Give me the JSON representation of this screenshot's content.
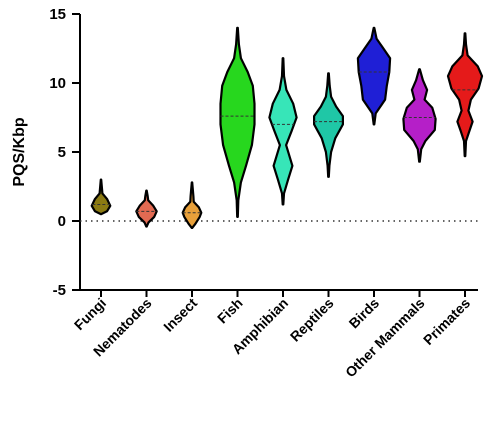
{
  "chart_data": {
    "type": "violin",
    "ylabel": "PQS/Kbp",
    "ylim": [
      -5,
      15
    ],
    "yticks": [
      -5,
      0,
      5,
      10,
      15
    ],
    "reference_line": 0,
    "categories": [
      "Fungi",
      "Nematodes",
      "Insect",
      "Fish",
      "Amphibian",
      "Reptiles",
      "Birds",
      "Other Mammals",
      "Primates"
    ],
    "series": [
      {
        "category": "Fungi",
        "color": "#8B7A12",
        "min": 0.5,
        "max": 3.0,
        "median": 1.2,
        "profile": [
          [
            0.5,
            0.01
          ],
          [
            0.7,
            0.35
          ],
          [
            1.1,
            0.55
          ],
          [
            1.6,
            0.35
          ],
          [
            2.0,
            0.08
          ],
          [
            2.5,
            0.05
          ],
          [
            3.0,
            0.01
          ]
        ]
      },
      {
        "category": "Nematodes",
        "color": "#E26A52",
        "min": -0.4,
        "max": 2.2,
        "median": 0.7,
        "profile": [
          [
            -0.4,
            0.01
          ],
          [
            -0.1,
            0.12
          ],
          [
            0.3,
            0.45
          ],
          [
            0.7,
            0.6
          ],
          [
            1.1,
            0.4
          ],
          [
            1.5,
            0.1
          ],
          [
            1.8,
            0.07
          ],
          [
            2.2,
            0.01
          ]
        ]
      },
      {
        "category": "Insect",
        "color": "#E8A03A",
        "min": -0.5,
        "max": 2.8,
        "median": 0.6,
        "profile": [
          [
            -0.5,
            0.01
          ],
          [
            -0.2,
            0.2
          ],
          [
            0.3,
            0.45
          ],
          [
            0.6,
            0.55
          ],
          [
            1.0,
            0.4
          ],
          [
            1.4,
            0.1
          ],
          [
            1.8,
            0.08
          ],
          [
            2.3,
            0.05
          ],
          [
            2.8,
            0.01
          ]
        ]
      },
      {
        "category": "Fish",
        "color": "#27D71E",
        "min": 0.3,
        "max": 14.0,
        "median": 7.6,
        "profile": [
          [
            0.3,
            0.02
          ],
          [
            1.5,
            0.05
          ],
          [
            2.8,
            0.2
          ],
          [
            4.0,
            0.5
          ],
          [
            5.5,
            0.85
          ],
          [
            7.0,
            1.0
          ],
          [
            8.5,
            1.0
          ],
          [
            9.8,
            0.9
          ],
          [
            10.8,
            0.6
          ],
          [
            11.8,
            0.2
          ],
          [
            12.8,
            0.08
          ],
          [
            14.0,
            0.02
          ]
        ]
      },
      {
        "category": "Amphibian",
        "color": "#37E5B8",
        "min": 1.2,
        "max": 11.8,
        "median": 7.0,
        "profile": [
          [
            1.2,
            0.02
          ],
          [
            2.0,
            0.06
          ],
          [
            3.0,
            0.3
          ],
          [
            4.0,
            0.55
          ],
          [
            5.5,
            0.18
          ],
          [
            6.5,
            0.5
          ],
          [
            7.5,
            0.8
          ],
          [
            8.5,
            0.6
          ],
          [
            9.5,
            0.2
          ],
          [
            10.5,
            0.06
          ],
          [
            11.8,
            0.02
          ]
        ]
      },
      {
        "category": "Reptiles",
        "color": "#1FC7A6",
        "min": 3.2,
        "max": 10.7,
        "median": 7.2,
        "profile": [
          [
            3.2,
            0.02
          ],
          [
            4.0,
            0.05
          ],
          [
            5.0,
            0.15
          ],
          [
            6.0,
            0.4
          ],
          [
            7.0,
            0.85
          ],
          [
            7.6,
            0.85
          ],
          [
            8.3,
            0.45
          ],
          [
            9.0,
            0.15
          ],
          [
            9.8,
            0.07
          ],
          [
            10.7,
            0.02
          ]
        ]
      },
      {
        "category": "Birds",
        "color": "#1F1FD6",
        "min": 7.0,
        "max": 14.0,
        "median": 10.8,
        "profile": [
          [
            7.0,
            0.02
          ],
          [
            7.8,
            0.1
          ],
          [
            8.8,
            0.65
          ],
          [
            9.8,
            0.75
          ],
          [
            10.8,
            0.9
          ],
          [
            11.8,
            0.95
          ],
          [
            12.5,
            0.55
          ],
          [
            13.2,
            0.15
          ],
          [
            14.0,
            0.02
          ]
        ]
      },
      {
        "category": "Other Mammals",
        "color": "#B51FC8",
        "min": 4.3,
        "max": 11.0,
        "median": 7.5,
        "profile": [
          [
            4.3,
            0.02
          ],
          [
            5.2,
            0.1
          ],
          [
            5.8,
            0.35
          ],
          [
            6.6,
            0.9
          ],
          [
            7.4,
            0.95
          ],
          [
            8.2,
            0.75
          ],
          [
            8.8,
            0.3
          ],
          [
            9.5,
            0.45
          ],
          [
            10.2,
            0.2
          ],
          [
            11.0,
            0.02
          ]
        ]
      },
      {
        "category": "Primates",
        "color": "#E51A1A",
        "min": 4.7,
        "max": 13.6,
        "median": 9.5,
        "profile": [
          [
            4.7,
            0.02
          ],
          [
            5.8,
            0.06
          ],
          [
            6.5,
            0.25
          ],
          [
            7.2,
            0.45
          ],
          [
            8.0,
            0.2
          ],
          [
            8.8,
            0.35
          ],
          [
            9.6,
            0.8
          ],
          [
            10.5,
            1.0
          ],
          [
            11.2,
            0.75
          ],
          [
            12.0,
            0.15
          ],
          [
            12.8,
            0.06
          ],
          [
            13.6,
            0.02
          ]
        ]
      }
    ]
  }
}
